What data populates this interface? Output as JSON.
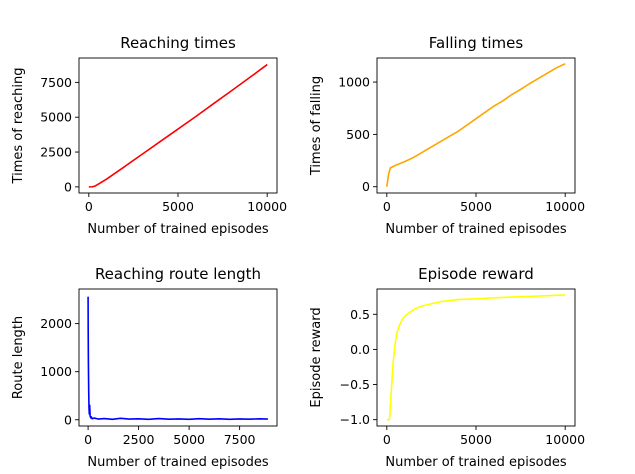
{
  "chart_data": [
    {
      "type": "line",
      "title": "Reaching times",
      "xlabel": "Number of trained episodes",
      "ylabel": "Times of reaching",
      "xlim": [
        -550,
        10550
      ],
      "ylim": [
        -440,
        9250
      ],
      "xticks": [
        0,
        5000,
        10000
      ],
      "xtick_labels": [
        "0",
        "5000",
        "10000"
      ],
      "yticks": [
        0,
        2500,
        5000,
        7500
      ],
      "ytick_labels": [
        "0",
        "2500",
        "5000",
        "7500"
      ],
      "series": [
        {
          "color": "#ff0000",
          "x": [
            0,
            200,
            350,
            600,
            1000,
            2000,
            3000,
            4000,
            5000,
            6000,
            7000,
            8000,
            9000,
            10000
          ],
          "y": [
            0,
            0,
            60,
            250,
            560,
            1450,
            2350,
            3250,
            4150,
            5050,
            5980,
            6900,
            7830,
            8780
          ]
        }
      ]
    },
    {
      "type": "line",
      "title": "Falling times",
      "xlabel": "Number of trained episodes",
      "ylabel": "Times of falling",
      "xlim": [
        -550,
        10550
      ],
      "ylim": [
        -60,
        1230
      ],
      "xticks": [
        0,
        5000,
        10000
      ],
      "xtick_labels": [
        "0",
        "5000",
        "10000"
      ],
      "yticks": [
        0,
        500,
        1000
      ],
      "ytick_labels": [
        "0",
        "500",
        "1000"
      ],
      "series": [
        {
          "color": "#ffa500",
          "x": [
            0,
            100,
            200,
            500,
            1000,
            1500,
            2000,
            2500,
            3000,
            3500,
            4000,
            4500,
            5000,
            5500,
            6000,
            6500,
            7000,
            7500,
            8000,
            8500,
            9000,
            9500,
            10000
          ],
          "y": [
            0,
            120,
            180,
            205,
            240,
            280,
            330,
            380,
            430,
            480,
            530,
            590,
            650,
            710,
            770,
            820,
            880,
            930,
            985,
            1035,
            1085,
            1135,
            1175
          ]
        }
      ]
    },
    {
      "type": "line",
      "title": "Reaching route length",
      "xlabel": "Number of trained episodes",
      "ylabel": "Route length",
      "xlim": [
        -450,
        9350
      ],
      "ylim": [
        -130,
        2720
      ],
      "xticks": [
        0,
        2500,
        5000,
        7500
      ],
      "xtick_labels": [
        "0",
        "2500",
        "5000",
        "7500"
      ],
      "yticks": [
        0,
        1000,
        2000
      ],
      "ytick_labels": [
        "0",
        "1000",
        "2000"
      ],
      "series": [
        {
          "color": "#0000ff",
          "x": [
            0,
            5,
            15,
            30,
            45,
            60,
            80,
            100,
            130,
            160,
            200,
            300,
            500,
            800,
            1200,
            1600,
            2000,
            2500,
            3000,
            3500,
            4000,
            4500,
            5000,
            5500,
            6000,
            6500,
            7000,
            7500,
            8000,
            8500,
            8900
          ],
          "y": [
            2560,
            1900,
            1200,
            600,
            250,
            120,
            300,
            80,
            40,
            60,
            20,
            35,
            15,
            25,
            10,
            30,
            15,
            20,
            10,
            25,
            12,
            18,
            10,
            22,
            12,
            20,
            10,
            18,
            12,
            20,
            15
          ]
        }
      ]
    },
    {
      "type": "line",
      "title": "Episode reward",
      "xlabel": "Number of trained episodes",
      "ylabel": "Episode reward",
      "xlim": [
        -550,
        10550
      ],
      "ylim": [
        -1.09,
        0.86
      ],
      "xticks": [
        0,
        5000,
        10000
      ],
      "xtick_labels": [
        "0",
        "5000",
        "10000"
      ],
      "yticks": [
        -1.0,
        -0.5,
        0.0,
        0.5
      ],
      "ytick_labels": [
        "−1.0",
        "−0.5",
        "0.0",
        "0.5"
      ],
      "series": [
        {
          "color": "#ffff00",
          "x": [
            0,
            150,
            250,
            350,
            450,
            550,
            700,
            850,
            1000,
            1300,
            1600,
            2000,
            2500,
            3000,
            4000,
            5000,
            6000,
            7000,
            8000,
            9000,
            10000
          ],
          "y": [
            -1.0,
            -1.0,
            -0.6,
            -0.2,
            0.05,
            0.22,
            0.34,
            0.42,
            0.47,
            0.53,
            0.58,
            0.62,
            0.65,
            0.68,
            0.71,
            0.72,
            0.735,
            0.745,
            0.755,
            0.765,
            0.775
          ]
        }
      ]
    }
  ]
}
